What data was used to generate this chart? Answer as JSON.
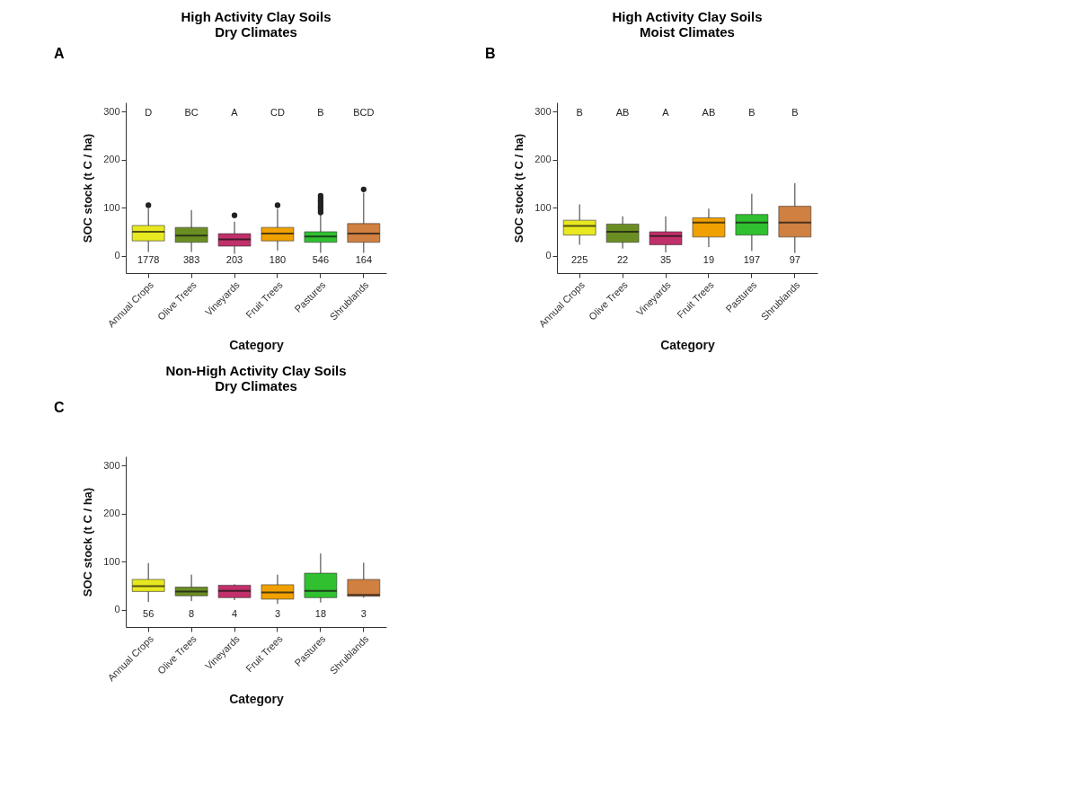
{
  "chart_data": [
    {
      "type": "box",
      "title": "High Activity Clay Soils\nDry Climates",
      "xlabel": "Category",
      "ylabel": "SOC stock (t C / ha)",
      "categories": [
        "Annual Crops",
        "Olive Trees",
        "Vineyards",
        "Fruit Trees",
        "Pastures",
        "Shrublands"
      ],
      "colors": [
        "#e8e820",
        "#6b8e23",
        "#c0306a",
        "#f0a000",
        "#30c030",
        "#d08040"
      ],
      "boxes": [
        {
          "low": 8,
          "q1": 31,
          "median": 50,
          "q3": 63,
          "high": 98,
          "outliers": [
            105
          ]
        },
        {
          "low": 8,
          "q1": 28,
          "median": 42,
          "q3": 59,
          "high": 95
        },
        {
          "low": 4,
          "q1": 20,
          "median": 34,
          "q3": 46,
          "high": 71,
          "outliers": [
            84
          ]
        },
        {
          "low": 11,
          "q1": 31,
          "median": 46,
          "q3": 59,
          "high": 97,
          "outliers": [
            105
          ]
        },
        {
          "low": 6,
          "q1": 28,
          "median": 40,
          "q3": 50,
          "high": 85,
          "outliers": [
            90,
            95,
            100,
            105,
            110,
            115,
            120,
            125
          ]
        },
        {
          "low": 6,
          "q1": 28,
          "median": 46,
          "q3": 67,
          "high": 131,
          "outliers": [
            138
          ]
        }
      ],
      "ylim": [
        -36,
        319
      ],
      "yticks": [
        0,
        100,
        200,
        300
      ],
      "annotations": [
        "A",
        "D",
        "BC",
        "A",
        "CD",
        "B",
        "BCD",
        "1778",
        "383",
        "203",
        "180",
        "546",
        "164"
      ]
    },
    {
      "type": "box",
      "title": "High Activity Clay Soils\nMoist Climates",
      "xlabel": "Category",
      "ylabel": "SOC stock (t C / ha)",
      "categories": [
        "Annual Crops",
        "Olive Trees",
        "Vineyards",
        "Fruit Trees",
        "Pastures",
        "Shrublands"
      ],
      "colors": [
        "#e8e820",
        "#6b8e23",
        "#c0306a",
        "#f0a000",
        "#30c030",
        "#d08040"
      ],
      "boxes": [
        {
          "low": 23,
          "q1": 43,
          "median": 62,
          "q3": 74,
          "high": 107
        },
        {
          "low": 15,
          "q1": 28,
          "median": 50,
          "q3": 66,
          "high": 82
        },
        {
          "low": 7,
          "q1": 23,
          "median": 41,
          "q3": 50,
          "high": 82
        },
        {
          "low": 18,
          "q1": 39,
          "median": 69,
          "q3": 79,
          "high": 98
        },
        {
          "low": 10,
          "q1": 43,
          "median": 69,
          "q3": 86,
          "high": 129
        },
        {
          "low": 6,
          "q1": 39,
          "median": 69,
          "q3": 103,
          "high": 151
        }
      ],
      "ylim": [
        -36,
        319
      ],
      "yticks": [
        0,
        100,
        200,
        300
      ],
      "annotations": [
        "B",
        "B",
        "AB",
        "A",
        "AB",
        "B",
        "B",
        "225",
        "22",
        "35",
        "19",
        "197",
        "97"
      ]
    },
    {
      "type": "box",
      "title": "Non-High Activity Clay Soils\nDry Climates",
      "xlabel": "Category",
      "ylabel": "SOC stock (t C / ha)",
      "categories": [
        "Annual Crops",
        "Olive Trees",
        "Vineyards",
        "Fruit Trees",
        "Pastures",
        "Shrublands"
      ],
      "colors": [
        "#e8e820",
        "#6b8e23",
        "#c0306a",
        "#f0a000",
        "#30c030",
        "#d08040"
      ],
      "boxes": [
        {
          "low": 16,
          "q1": 38,
          "median": 49,
          "q3": 63,
          "high": 97
        },
        {
          "low": 18,
          "q1": 29,
          "median": 38,
          "q3": 47,
          "high": 73
        },
        {
          "low": 20,
          "q1": 25,
          "median": 39,
          "q3": 51,
          "high": 53
        },
        {
          "low": 12,
          "q1": 22,
          "median": 36,
          "q3": 52,
          "high": 73
        },
        {
          "low": 15,
          "q1": 25,
          "median": 39,
          "q3": 76,
          "high": 117
        },
        {
          "low": 25,
          "q1": 28,
          "median": 31,
          "q3": 63,
          "high": 98
        }
      ],
      "ylim": [
        -36,
        319
      ],
      "yticks": [
        0,
        100,
        200,
        300
      ],
      "annotations": [
        "C",
        "56",
        "8",
        "4",
        "3",
        "18",
        "3"
      ]
    }
  ]
}
